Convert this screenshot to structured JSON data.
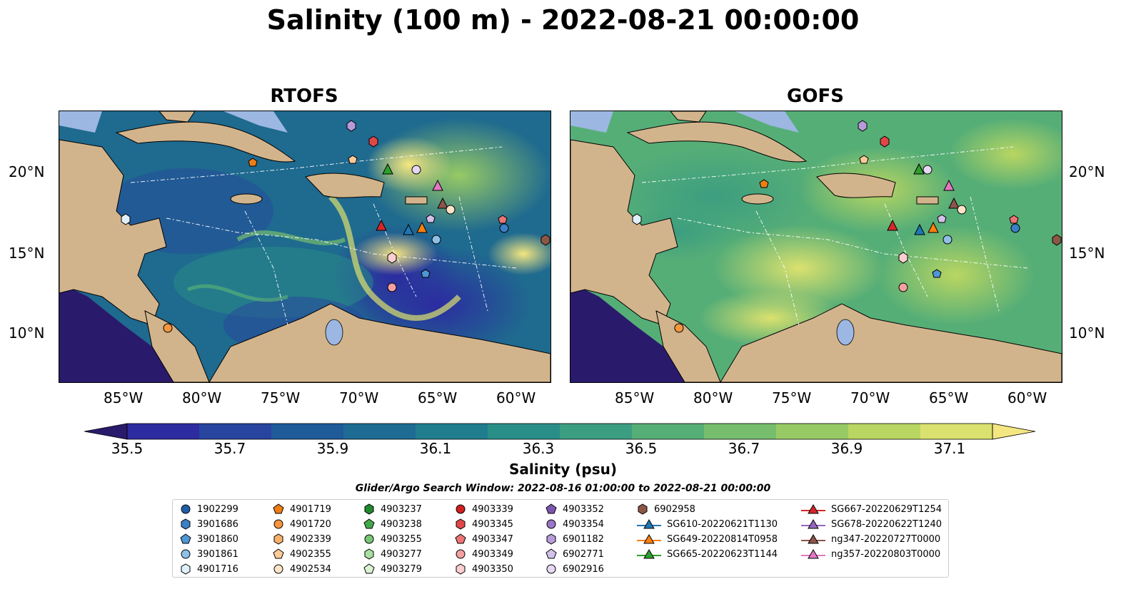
{
  "title": "Salinity (100 m) - 2022-08-21 00:00:00",
  "panels": [
    {
      "name": "RTOFS"
    },
    {
      "name": "GOFS"
    }
  ],
  "axes": {
    "x_ticks": [
      "85°W",
      "80°W",
      "75°W",
      "70°W",
      "65°W",
      "60°W"
    ],
    "y_ticks": [
      "20°N",
      "15°N",
      "10°N"
    ]
  },
  "colorbar": {
    "label": "Salinity (psu)",
    "min": 35.5,
    "max": 37.1,
    "ticks": [
      "35.5",
      "35.7",
      "35.9",
      "36.1",
      "36.3",
      "36.5",
      "36.7",
      "36.9",
      "37.1"
    ],
    "colors": [
      "#2a1a6b",
      "#2c2ba0",
      "#27449e",
      "#1f5a99",
      "#1e6b93",
      "#1f7d8e",
      "#2a8e88",
      "#3c9e80",
      "#56ae77",
      "#76bd6d",
      "#97ca65",
      "#b9d662",
      "#dbe16e",
      "#f4e680"
    ]
  },
  "legend": {
    "title": "Glider/Argo Search Window: 2022-08-16 01:00:00 to 2022-08-21 00:00:00",
    "columns": [
      [
        {
          "label": "1902299",
          "marker": "circle",
          "color": "#1f5fa8"
        },
        {
          "label": "3901686",
          "marker": "hexagon",
          "color": "#3b7fc4"
        },
        {
          "label": "3901860",
          "marker": "pentagon",
          "color": "#4f96d4"
        },
        {
          "label": "3901861",
          "marker": "circle",
          "color": "#8fc0e6"
        },
        {
          "label": "4901716",
          "marker": "hexagon",
          "color": "#dff0fb"
        }
      ],
      [
        {
          "label": "4901719",
          "marker": "pentagon",
          "color": "#f07d14"
        },
        {
          "label": "4901720",
          "marker": "circle",
          "color": "#f5963d"
        },
        {
          "label": "4902339",
          "marker": "hexagon",
          "color": "#f8b06a"
        },
        {
          "label": "4902355",
          "marker": "pentagon",
          "color": "#fbcb98"
        },
        {
          "label": "4902534",
          "marker": "circle",
          "color": "#fde4c8"
        }
      ],
      [
        {
          "label": "4903237",
          "marker": "hexagon",
          "color": "#1f8a2b"
        },
        {
          "label": "4903238",
          "marker": "pentagon",
          "color": "#44a84a"
        },
        {
          "label": "4903255",
          "marker": "circle",
          "color": "#76c773"
        },
        {
          "label": "4903277",
          "marker": "hexagon",
          "color": "#a8dfa2"
        },
        {
          "label": "4903279",
          "marker": "pentagon",
          "color": "#d9f2d2"
        }
      ],
      [
        {
          "label": "4903339",
          "marker": "circle",
          "color": "#d01f1f"
        },
        {
          "label": "4903345",
          "marker": "hexagon",
          "color": "#e04848"
        },
        {
          "label": "4903347",
          "marker": "pentagon",
          "color": "#ec7474"
        },
        {
          "label": "4903349",
          "marker": "circle",
          "color": "#f4a0a0"
        },
        {
          "label": "4903350",
          "marker": "hexagon",
          "color": "#fbcfcf"
        }
      ],
      [
        {
          "label": "4903352",
          "marker": "pentagon",
          "color": "#7d55b0"
        },
        {
          "label": "4903354",
          "marker": "circle",
          "color": "#9a76c6"
        },
        {
          "label": "6901182",
          "marker": "hexagon",
          "color": "#b79bd9"
        },
        {
          "label": "6902771",
          "marker": "pentagon",
          "color": "#d3c1ea"
        },
        {
          "label": "6902916",
          "marker": "circle",
          "color": "#e6d8f4"
        }
      ],
      [
        {
          "label": "6902958",
          "marker": "hexagon",
          "color": "#8b5744"
        },
        {
          "label": "SG610-20220621T1130",
          "marker": "triangle-line",
          "color": "#1f77b4"
        },
        {
          "label": "SG649-20220814T0958",
          "marker": "triangle-line",
          "color": "#ff7f0e"
        },
        {
          "label": "SG665-20220623T1144",
          "marker": "triangle-line",
          "color": "#2ca02c"
        }
      ],
      [
        {
          "label": "SG667-20220629T1254",
          "marker": "triangle-line",
          "color": "#d62728"
        },
        {
          "label": "SG678-20220622T1240",
          "marker": "triangle-line",
          "color": "#9467bd"
        },
        {
          "label": "ng347-20220727T0000",
          "marker": "triangle-line",
          "color": "#8c564b"
        },
        {
          "label": "ng357-20220803T0000",
          "marker": "triangle-line",
          "color": "#e377c2"
        }
      ]
    ]
  }
}
